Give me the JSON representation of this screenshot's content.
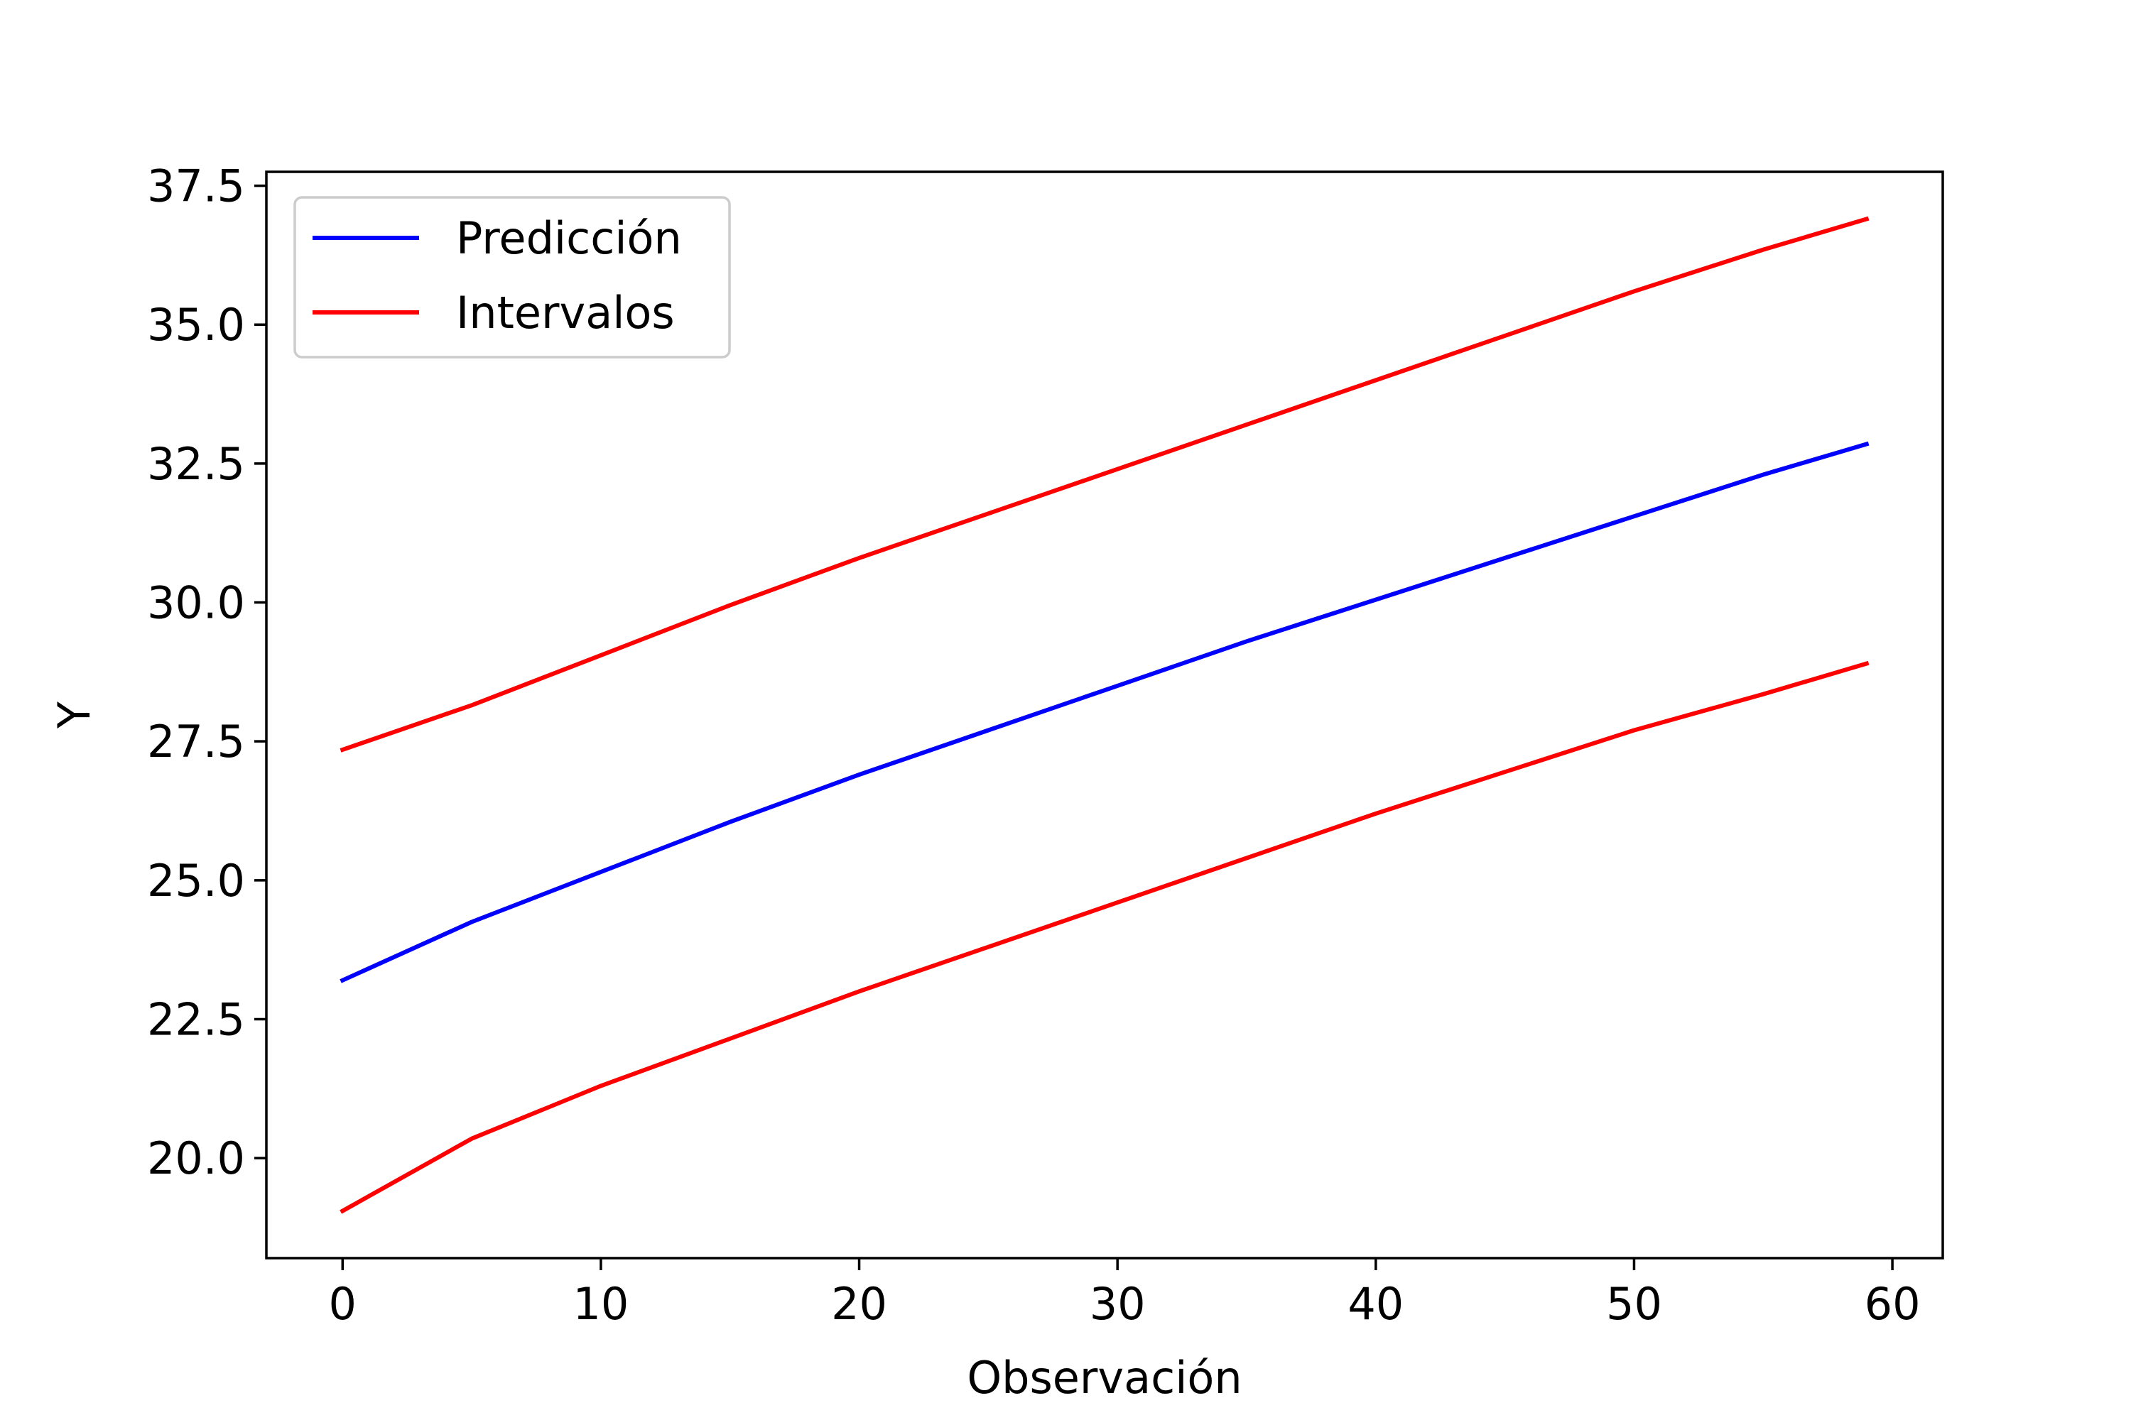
{
  "chart_data": {
    "type": "line",
    "title": "",
    "xlabel": "Observación",
    "ylabel": "Y",
    "xlim": [
      -2.95,
      61.95
    ],
    "ylim": [
      18.2,
      37.75
    ],
    "xticks": [
      0,
      10,
      20,
      30,
      40,
      50,
      60
    ],
    "xtick_labels": [
      "0",
      "10",
      "20",
      "30",
      "40",
      "50",
      "60"
    ],
    "yticks": [
      20.0,
      22.5,
      25.0,
      27.5,
      30.0,
      32.5,
      35.0,
      37.5
    ],
    "ytick_labels": [
      "20.0",
      "22.5",
      "25.0",
      "27.5",
      "30.0",
      "32.5",
      "35.0",
      "37.5"
    ],
    "grid": false,
    "legend_position": "top-left",
    "x": [
      0,
      5,
      10,
      15,
      20,
      25,
      30,
      35,
      40,
      45,
      50,
      55,
      59
    ],
    "series": [
      {
        "name": "Predicción",
        "color": "#0000ff",
        "values": [
          23.2,
          24.25,
          25.15,
          26.05,
          26.9,
          27.7,
          28.5,
          29.3,
          30.05,
          30.8,
          31.55,
          32.3,
          32.85
        ]
      },
      {
        "name": "Intervalos",
        "color": "#ff0000",
        "values": [
          27.35,
          28.15,
          29.05,
          29.95,
          30.8,
          31.6,
          32.4,
          33.2,
          34.0,
          34.8,
          35.6,
          36.35,
          36.9
        ]
      },
      {
        "name": "",
        "legend_hidden": true,
        "color": "#ff0000",
        "values": [
          19.05,
          20.35,
          21.3,
          22.15,
          23.0,
          23.8,
          24.6,
          25.4,
          26.2,
          26.95,
          27.7,
          28.35,
          28.9
        ]
      }
    ]
  }
}
